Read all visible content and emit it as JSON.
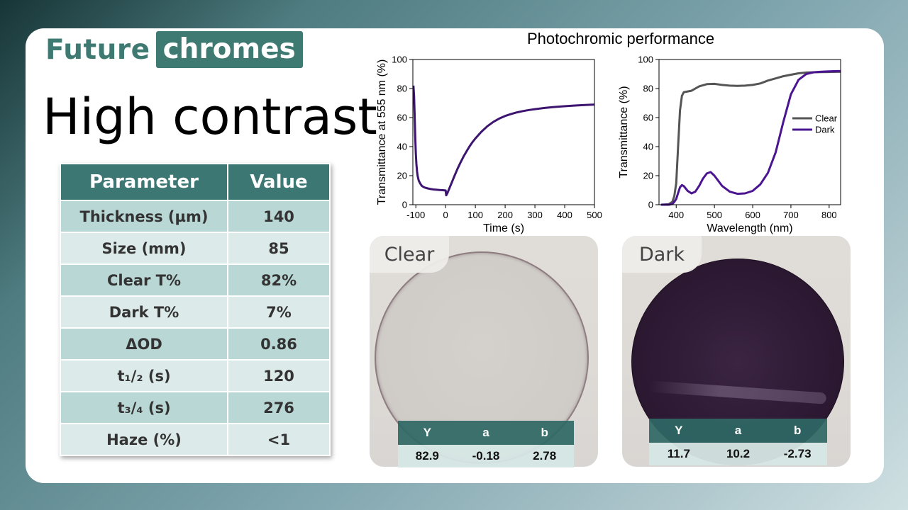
{
  "logo": {
    "part1": "Future",
    "part2": "chromes"
  },
  "headline": "High contrast",
  "params_table": {
    "headers": [
      "Parameter",
      "Value"
    ],
    "rows": [
      {
        "param": "Thickness (µm)",
        "value": "140"
      },
      {
        "param": "Size (mm)",
        "value": "85"
      },
      {
        "param": "Clear T%",
        "value": "82%"
      },
      {
        "param": "Dark T%",
        "value": "7%"
      },
      {
        "param": "ΔOD",
        "value": "0.86"
      },
      {
        "param": "t₁/₂ (s)",
        "value": "120"
      },
      {
        "param": "t₃/₄ (s)",
        "value": "276"
      },
      {
        "param": "Haze (%)",
        "value": "<1"
      }
    ]
  },
  "charts_title": "Photochromic performance",
  "chart_data": [
    {
      "type": "line",
      "title": "",
      "xlabel": "Time (s)",
      "ylabel": "Transmittance at 555 nm (%)",
      "xlim": [
        -110,
        500
      ],
      "ylim": [
        0,
        100
      ],
      "xticks": [
        -100,
        0,
        100,
        200,
        300,
        400,
        500
      ],
      "yticks": [
        0,
        20,
        40,
        60,
        80,
        100
      ],
      "grid": false,
      "series": [
        {
          "color": "#3d1470",
          "x": [
            -108,
            -106,
            -104,
            -102,
            -100,
            -98,
            -96,
            -94,
            -92,
            -90,
            -85,
            -80,
            -75,
            -70,
            -60,
            -50,
            -40,
            -30,
            -20,
            -10,
            0,
            2,
            5,
            10,
            20,
            30,
            40,
            50,
            60,
            70,
            80,
            90,
            100,
            120,
            140,
            160,
            180,
            200,
            220,
            240,
            260,
            280,
            300,
            330,
            360,
            390,
            420,
            450,
            480,
            500
          ],
          "y": [
            82,
            75,
            62,
            46,
            35,
            28,
            23,
            20,
            18,
            16.5,
            14.5,
            13,
            12.3,
            11.8,
            11.2,
            10.8,
            10.5,
            10.3,
            10.1,
            10,
            9.8,
            6.5,
            7.5,
            10,
            15,
            20,
            24.8,
            29,
            33,
            36.6,
            40,
            43,
            45.6,
            50.2,
            54,
            57,
            59.3,
            61.1,
            62.5,
            63.6,
            64.5,
            65.2,
            65.8,
            66.6,
            67.2,
            67.7,
            68.1,
            68.5,
            68.8,
            69
          ]
        }
      ]
    },
    {
      "type": "line",
      "title": "",
      "xlabel": "Wavelength (nm)",
      "ylabel": "Transmittance (%)",
      "xlim": [
        355,
        830
      ],
      "ylim": [
        0,
        100
      ],
      "xticks": [
        400,
        500,
        600,
        700,
        800
      ],
      "yticks": [
        0,
        20,
        40,
        60,
        80,
        100
      ],
      "grid": false,
      "legend": "center-right",
      "series": [
        {
          "name": "Clear",
          "color": "#555555",
          "x": [
            360,
            380,
            390,
            395,
            400,
            405,
            410,
            415,
            420,
            430,
            440,
            450,
            460,
            480,
            500,
            520,
            540,
            560,
            580,
            600,
            620,
            640,
            660,
            680,
            700,
            720,
            740,
            760,
            780,
            800,
            820,
            830
          ],
          "y": [
            0,
            0.3,
            2,
            6,
            15,
            40,
            65,
            75,
            77.5,
            78,
            78.5,
            80,
            81.5,
            83,
            83.2,
            82.5,
            82,
            81.8,
            82,
            82.5,
            83.5,
            85.5,
            87,
            88.5,
            89.5,
            90.5,
            91,
            91.2,
            91.3,
            91.4,
            91.5,
            91.5
          ]
        },
        {
          "name": "Dark",
          "color": "#4b1490",
          "x": [
            360,
            380,
            390,
            395,
            400,
            405,
            410,
            415,
            420,
            430,
            440,
            450,
            460,
            470,
            480,
            490,
            500,
            520,
            540,
            560,
            580,
            600,
            620,
            640,
            660,
            680,
            700,
            720,
            740,
            760,
            780,
            800,
            820,
            830
          ],
          "y": [
            0,
            0,
            0.5,
            2,
            4,
            8,
            12,
            13.5,
            12.8,
            9.5,
            7.8,
            9,
            13,
            18,
            21.5,
            22.5,
            20,
            13,
            9,
            7.5,
            7.8,
            9.5,
            14,
            22,
            36,
            57,
            76,
            86,
            90,
            91.2,
            91.6,
            91.8,
            92,
            92
          ]
        }
      ]
    }
  ],
  "photo_clear": {
    "label": "Clear",
    "headers": [
      "Y",
      "a",
      "b"
    ],
    "values": [
      "82.9",
      "-0.18",
      "2.78"
    ]
  },
  "photo_dark": {
    "label": "Dark",
    "headers": [
      "Y",
      "a",
      "b"
    ],
    "values": [
      "11.7",
      "10.2",
      "-2.73"
    ]
  }
}
